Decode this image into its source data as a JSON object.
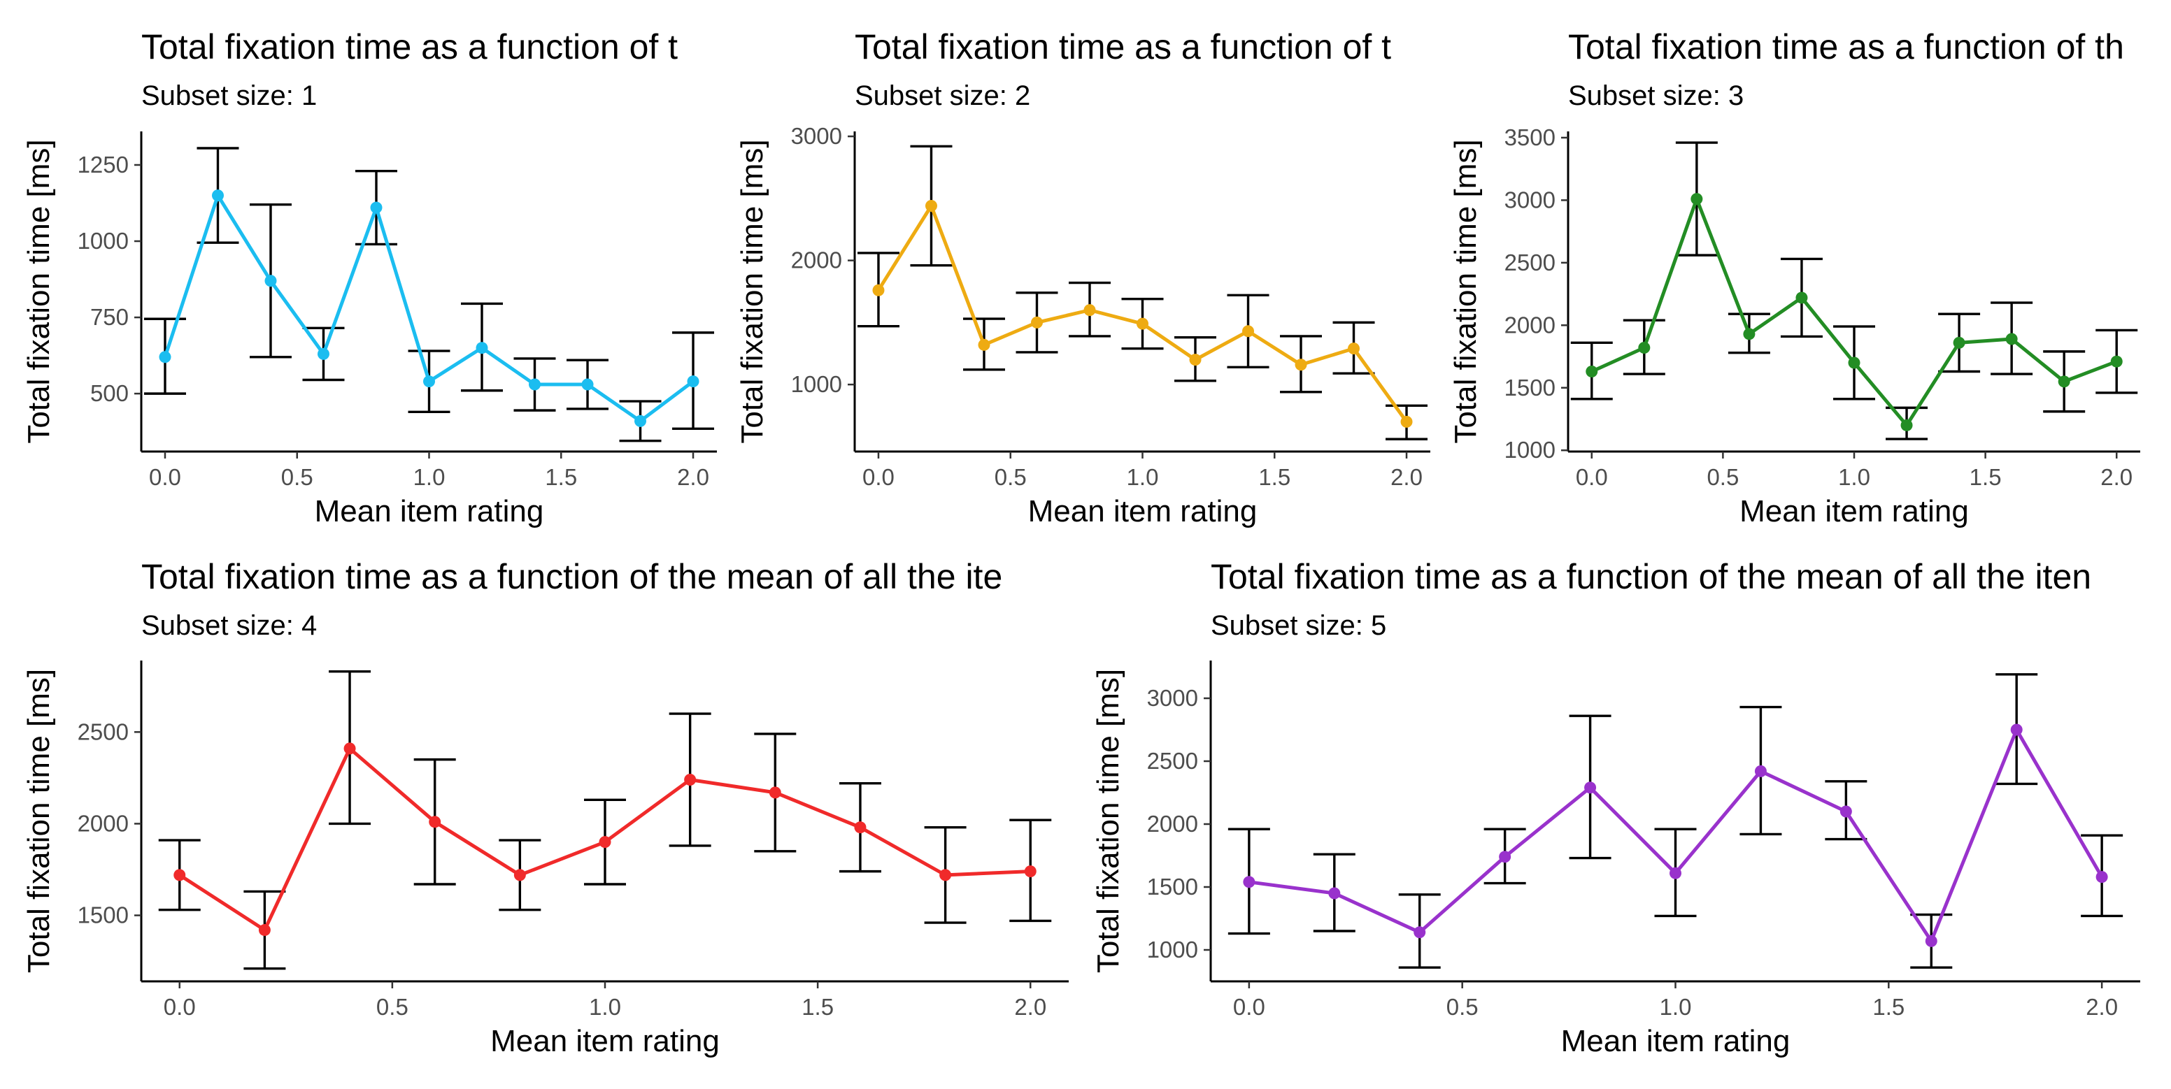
{
  "chart_data": [
    {
      "type": "line",
      "title": "Total fixation time as a function of t",
      "subtitle": "Subset size: 1",
      "xlabel": "Mean item rating",
      "ylabel": "Total fixation time [ms]",
      "color": "#1bbdf0",
      "x": [
        0.0,
        0.2,
        0.4,
        0.6,
        0.8,
        1.0,
        1.2,
        1.4,
        1.6,
        1.8,
        2.0
      ],
      "y": [
        620,
        1150,
        870,
        630,
        1110,
        540,
        650,
        530,
        530,
        410,
        540
      ],
      "err_low": [
        500,
        995,
        620,
        545,
        990,
        440,
        510,
        445,
        450,
        345,
        385
      ],
      "err_high": [
        745,
        1305,
        1120,
        715,
        1230,
        640,
        795,
        615,
        610,
        475,
        700
      ],
      "xlim": [
        -0.09,
        2.09
      ],
      "ylim": [
        310,
        1360
      ],
      "xticks": [
        0.0,
        0.5,
        1.0,
        1.5,
        2.0
      ],
      "xtick_labels": [
        "0.0",
        "0.5",
        "1.0",
        "1.5",
        "2.0"
      ],
      "yticks": [
        500,
        750,
        1000,
        1250
      ],
      "ytick_labels": [
        "500",
        "750",
        "1000",
        "1250"
      ],
      "grid": false
    },
    {
      "type": "line",
      "title": "Total fixation time as a function of t",
      "subtitle": "Subset size: 2",
      "xlabel": "Mean item rating",
      "ylabel": "Total fixation time [ms]",
      "color": "#eeab12",
      "x": [
        0.0,
        0.2,
        0.4,
        0.6,
        0.8,
        1.0,
        1.2,
        1.4,
        1.6,
        1.8,
        2.0
      ],
      "y": [
        1760,
        2440,
        1320,
        1500,
        1600,
        1490,
        1200,
        1430,
        1160,
        1290,
        700
      ],
      "err_low": [
        1470,
        1960,
        1120,
        1260,
        1390,
        1290,
        1030,
        1140,
        940,
        1090,
        560
      ],
      "err_high": [
        2060,
        2920,
        1530,
        1740,
        1820,
        1690,
        1380,
        1720,
        1390,
        1500,
        830
      ],
      "xlim": [
        -0.09,
        2.09
      ],
      "ylim": [
        460,
        3040
      ],
      "xticks": [
        0.0,
        0.5,
        1.0,
        1.5,
        2.0
      ],
      "xtick_labels": [
        "0.0",
        "0.5",
        "1.0",
        "1.5",
        "2.0"
      ],
      "yticks": [
        1000,
        2000,
        3000
      ],
      "ytick_labels": [
        "1000",
        "2000",
        "3000"
      ],
      "grid": false
    },
    {
      "type": "line",
      "title": "Total fixation time as a function of th",
      "subtitle": "Subset size: 3",
      "xlabel": "Mean item rating",
      "ylabel": "Total fixation time [ms]",
      "color": "#238d24",
      "x": [
        0.0,
        0.2,
        0.4,
        0.6,
        0.8,
        1.0,
        1.2,
        1.4,
        1.6,
        1.8,
        2.0
      ],
      "y": [
        1630,
        1820,
        3010,
        1930,
        2220,
        1700,
        1200,
        1860,
        1890,
        1550,
        1710
      ],
      "err_low": [
        1410,
        1610,
        2560,
        1780,
        1910,
        1410,
        1090,
        1630,
        1610,
        1310,
        1460
      ],
      "err_high": [
        1860,
        2040,
        3460,
        2090,
        2530,
        1990,
        1340,
        2090,
        2180,
        1790,
        1960
      ],
      "xlim": [
        -0.09,
        2.09
      ],
      "ylim": [
        990,
        3550
      ],
      "xticks": [
        0.0,
        0.5,
        1.0,
        1.5,
        2.0
      ],
      "xtick_labels": [
        "0.0",
        "0.5",
        "1.0",
        "1.5",
        "2.0"
      ],
      "yticks": [
        1000,
        1500,
        2000,
        2500,
        3000,
        3500
      ],
      "ytick_labels": [
        "1000",
        "1500",
        "2000",
        "2500",
        "3000",
        "3500"
      ],
      "grid": false
    },
    {
      "type": "line",
      "title": "Total fixation time as a function of the mean of all the ite",
      "subtitle": "Subset size: 4",
      "xlabel": "Mean item rating",
      "ylabel": "Total fixation time [ms]",
      "color": "#f02a2a",
      "x": [
        0.0,
        0.2,
        0.4,
        0.6,
        0.8,
        1.0,
        1.2,
        1.4,
        1.6,
        1.8,
        2.0
      ],
      "y": [
        1720,
        1420,
        2410,
        2010,
        1720,
        1900,
        2240,
        2170,
        1980,
        1720,
        1740
      ],
      "err_low": [
        1530,
        1210,
        2000,
        1670,
        1530,
        1670,
        1880,
        1850,
        1740,
        1460,
        1470
      ],
      "err_high": [
        1910,
        1630,
        2830,
        2350,
        1910,
        2130,
        2600,
        2490,
        2220,
        1980,
        2020
      ],
      "xlim": [
        -0.09,
        2.09
      ],
      "ylim": [
        1140,
        2890
      ],
      "xticks": [
        0.0,
        0.5,
        1.0,
        1.5,
        2.0
      ],
      "xtick_labels": [
        "0.0",
        "0.5",
        "1.0",
        "1.5",
        "2.0"
      ],
      "yticks": [
        1500,
        2000,
        2500
      ],
      "ytick_labels": [
        "1500",
        "2000",
        "2500"
      ],
      "grid": false
    },
    {
      "type": "line",
      "title": "Total fixation time as a function of the mean of all the iten",
      "subtitle": "Subset size: 5",
      "xlabel": "Mean item rating",
      "ylabel": "Total fixation time [ms]",
      "color": "#9932cc",
      "x": [
        0.0,
        0.2,
        0.4,
        0.6,
        0.8,
        1.0,
        1.2,
        1.4,
        1.6,
        1.8,
        2.0
      ],
      "y": [
        1540,
        1450,
        1140,
        1740,
        2290,
        1610,
        2420,
        2100,
        1070,
        2750,
        1580
      ],
      "err_low": [
        1130,
        1150,
        860,
        1530,
        1730,
        1270,
        1920,
        1880,
        860,
        2320,
        1270
      ],
      "err_high": [
        1960,
        1760,
        1440,
        1960,
        2860,
        1960,
        2930,
        2340,
        1280,
        3190,
        1910
      ],
      "xlim": [
        -0.09,
        2.09
      ],
      "ylim": [
        750,
        3300
      ],
      "xticks": [
        0.0,
        0.5,
        1.0,
        1.5,
        2.0
      ],
      "xtick_labels": [
        "0.0",
        "0.5",
        "1.0",
        "1.5",
        "2.0"
      ],
      "yticks": [
        1000,
        1500,
        2000,
        2500,
        3000
      ],
      "ytick_labels": [
        "1000",
        "1500",
        "2000",
        "2500",
        "3000"
      ],
      "grid": false
    }
  ]
}
